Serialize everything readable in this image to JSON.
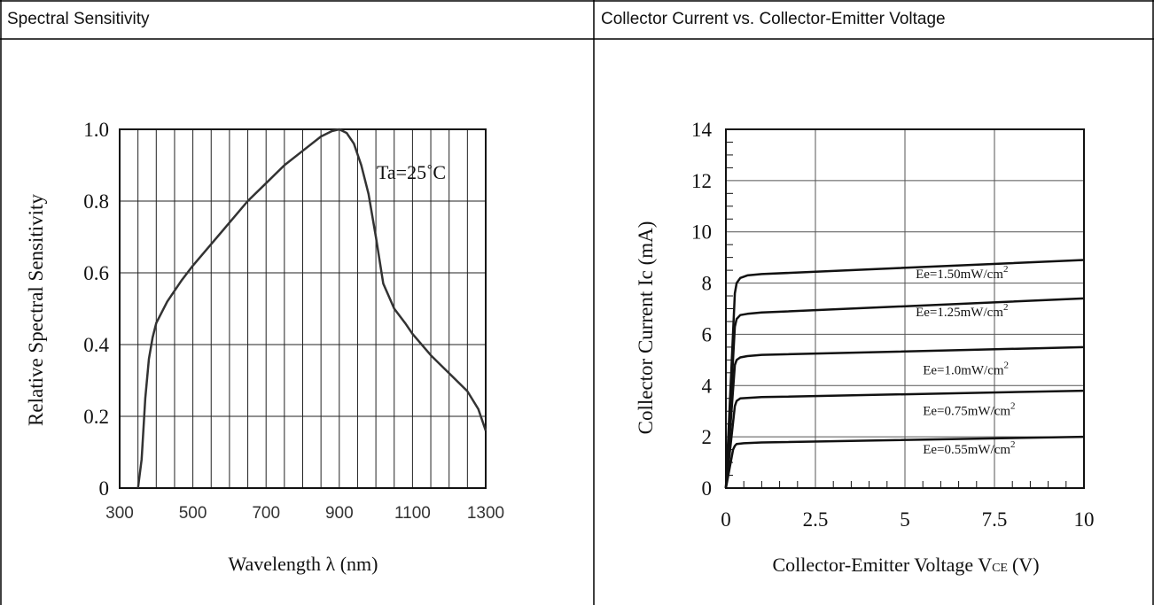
{
  "panels": {
    "left_title": "Spectral Sensitivity",
    "right_title": "Collector Current vs. Collector-Emitter Voltage"
  },
  "chart_data": [
    {
      "type": "line",
      "title": "Spectral Sensitivity",
      "xlabel": "Wavelength λ (nm)",
      "ylabel": "Relative Spectral Sensitivity",
      "xlim": [
        300,
        1300
      ],
      "ylim": [
        0,
        1.0
      ],
      "x_ticks": [
        300,
        500,
        700,
        900,
        1100,
        1300
      ],
      "x_tick_labels": [
        "300",
        "500",
        "700",
        "900",
        "1100",
        "1300"
      ],
      "y_ticks": [
        0,
        0.2,
        0.4,
        0.6,
        0.8,
        1.0
      ],
      "y_tick_labels": [
        "0",
        "0.2",
        "0.4",
        "0.6",
        "0.8",
        "1.0"
      ],
      "grid": true,
      "annotation": "Ta=25˚C",
      "series": [
        {
          "x": [
            350,
            360,
            370,
            380,
            390,
            400,
            430,
            470,
            500,
            550,
            600,
            650,
            700,
            750,
            800,
            850,
            880,
            900,
            920,
            940,
            960,
            980,
            1000,
            1020,
            1050,
            1080,
            1100,
            1150,
            1200,
            1250,
            1280,
            1300
          ],
          "y": [
            0,
            0.08,
            0.25,
            0.36,
            0.42,
            0.46,
            0.52,
            0.58,
            0.62,
            0.68,
            0.74,
            0.8,
            0.85,
            0.9,
            0.94,
            0.98,
            0.995,
            1.0,
            0.99,
            0.96,
            0.9,
            0.82,
            0.7,
            0.57,
            0.5,
            0.46,
            0.43,
            0.37,
            0.32,
            0.27,
            0.22,
            0.16
          ]
        }
      ]
    },
    {
      "type": "line",
      "title": "Collector Current vs. Collector-Emitter Voltage",
      "xlabel": "Collector-Emitter Voltage V",
      "xlabel_sub": "CE",
      "xlabel_unit": "(V)",
      "ylabel": "Collector Current Ic (mA)",
      "xlim": [
        0,
        10
      ],
      "ylim": [
        0,
        14
      ],
      "x_ticks": [
        0,
        2.5,
        5,
        7.5,
        10
      ],
      "x_tick_labels": [
        "0",
        "2.5",
        "5",
        "7.5",
        "10"
      ],
      "y_ticks": [
        0,
        2,
        4,
        6,
        8,
        10,
        12,
        14
      ],
      "y_tick_labels": [
        "0",
        "2",
        "4",
        "6",
        "8",
        "10",
        "12",
        "14"
      ],
      "grid": true,
      "series": [
        {
          "name": "Ee=1.50mW/cm",
          "label_sup": "2",
          "label_at": [
            5.3,
            8.2
          ],
          "x": [
            0,
            0.25,
            0.3,
            0.4,
            0.6,
            1.0,
            10
          ],
          "y": [
            0,
            7.6,
            8.0,
            8.2,
            8.3,
            8.35,
            8.9
          ]
        },
        {
          "name": "Ee=1.25mW/cm",
          "label_sup": "2",
          "label_at": [
            5.3,
            6.7
          ],
          "x": [
            0,
            0.25,
            0.3,
            0.4,
            0.6,
            1.0,
            10
          ],
          "y": [
            0,
            6.3,
            6.6,
            6.75,
            6.8,
            6.85,
            7.4
          ]
        },
        {
          "name": "Ee=1.0mW/cm",
          "label_sup": "2",
          "label_at": [
            5.5,
            4.45
          ],
          "x": [
            0,
            0.25,
            0.3,
            0.4,
            0.6,
            1.0,
            10
          ],
          "y": [
            0,
            4.8,
            5.0,
            5.1,
            5.15,
            5.2,
            5.5
          ]
        },
        {
          "name": "Ee=0.75mW/cm",
          "label_sup": "2",
          "label_at": [
            5.5,
            2.85
          ],
          "x": [
            0,
            0.25,
            0.3,
            0.4,
            0.6,
            1.0,
            10
          ],
          "y": [
            0,
            3.2,
            3.4,
            3.5,
            3.52,
            3.55,
            3.8
          ]
        },
        {
          "name": "Ee=0.55mW/cm",
          "label_sup": "2",
          "label_at": [
            5.5,
            1.35
          ],
          "x": [
            0,
            0.2,
            0.25,
            0.3,
            0.5,
            1.0,
            10
          ],
          "y": [
            0,
            1.5,
            1.65,
            1.72,
            1.75,
            1.78,
            2.0
          ]
        }
      ]
    }
  ]
}
